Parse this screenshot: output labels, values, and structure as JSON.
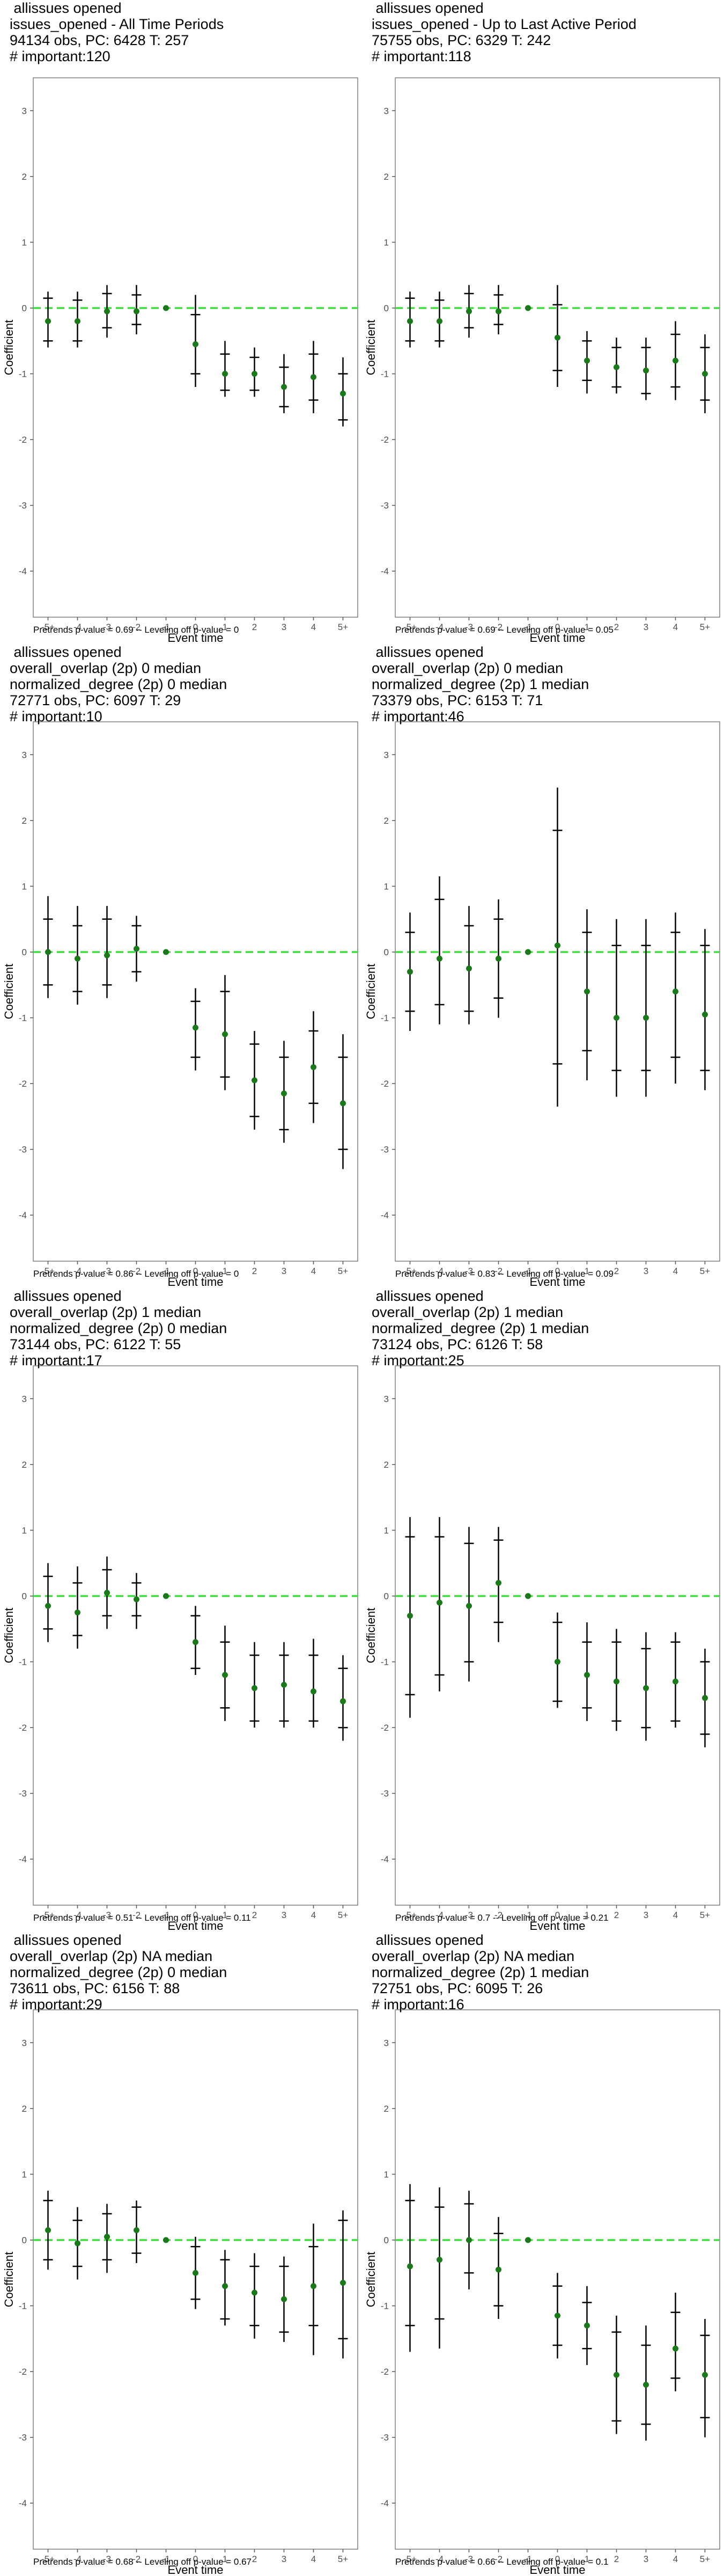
{
  "chart_data": [
    {
      "type": "scatter",
      "title_lines": [
        "allissues opened",
        "issues_opened - All Time Periods",
        "94134 obs, PC: 6428 T: 257",
        "# important:120"
      ],
      "xlabel": "Event time",
      "ylabel": "Coefficient",
      "ylim": [
        -4.7,
        3.5
      ],
      "yticks": [
        -4,
        -3,
        -2,
        -1,
        0,
        1,
        2,
        3
      ],
      "categories": [
        "-5+",
        "-4",
        "-3",
        "-2",
        "-1",
        "0",
        "1",
        "2",
        "3",
        "4",
        "5+"
      ],
      "reference_line": 0,
      "estimate": [
        -0.2,
        -0.2,
        -0.05,
        -0.05,
        0,
        -0.55,
        -1.0,
        -1.0,
        -1.2,
        -1.05,
        -1.3
      ],
      "ci_inner": [
        [
          -0.5,
          0.15
        ],
        [
          -0.5,
          0.12
        ],
        [
          -0.3,
          0.22
        ],
        [
          -0.25,
          0.2
        ],
        [
          0,
          0
        ],
        [
          -1.0,
          -0.1
        ],
        [
          -1.25,
          -0.7
        ],
        [
          -1.25,
          -0.75
        ],
        [
          -1.5,
          -0.9
        ],
        [
          -1.4,
          -0.7
        ],
        [
          -1.7,
          -1.0
        ]
      ],
      "ci_outer": [
        [
          -0.6,
          0.25
        ],
        [
          -0.6,
          0.25
        ],
        [
          -0.45,
          0.35
        ],
        [
          -0.4,
          0.35
        ],
        [
          0,
          0
        ],
        [
          -1.2,
          0.2
        ],
        [
          -1.35,
          -0.5
        ],
        [
          -1.35,
          -0.6
        ],
        [
          -1.6,
          -0.7
        ],
        [
          -1.6,
          -0.5
        ],
        [
          -1.8,
          -0.75
        ]
      ],
      "footer": "Pretrends p-value = 0.69 -- Leveling off p-value = 0"
    },
    {
      "type": "scatter",
      "title_lines": [
        "allissues opened",
        "issues_opened - Up to Last Active Period",
        "75755 obs, PC: 6329 T: 242",
        "# important:118"
      ],
      "xlabel": "Event time",
      "ylabel": "Coefficient",
      "ylim": [
        -4.7,
        3.5
      ],
      "yticks": [
        -4,
        -3,
        -2,
        -1,
        0,
        1,
        2,
        3
      ],
      "categories": [
        "-5+",
        "-4",
        "-3",
        "-2",
        "-1",
        "0",
        "1",
        "2",
        "3",
        "4",
        "5+"
      ],
      "reference_line": 0,
      "estimate": [
        -0.2,
        -0.2,
        -0.05,
        -0.05,
        0,
        -0.45,
        -0.8,
        -0.9,
        -0.95,
        -0.8,
        -1.0
      ],
      "ci_inner": [
        [
          -0.5,
          0.15
        ],
        [
          -0.5,
          0.12
        ],
        [
          -0.3,
          0.22
        ],
        [
          -0.25,
          0.2
        ],
        [
          0,
          0
        ],
        [
          -0.95,
          0.05
        ],
        [
          -1.1,
          -0.5
        ],
        [
          -1.2,
          -0.6
        ],
        [
          -1.3,
          -0.6
        ],
        [
          -1.2,
          -0.4
        ],
        [
          -1.4,
          -0.6
        ]
      ],
      "ci_outer": [
        [
          -0.6,
          0.25
        ],
        [
          -0.6,
          0.25
        ],
        [
          -0.45,
          0.35
        ],
        [
          -0.4,
          0.35
        ],
        [
          0,
          0
        ],
        [
          -1.2,
          0.35
        ],
        [
          -1.3,
          -0.35
        ],
        [
          -1.3,
          -0.45
        ],
        [
          -1.4,
          -0.45
        ],
        [
          -1.4,
          -0.2
        ],
        [
          -1.6,
          -0.4
        ]
      ],
      "footer": "Pretrends p-value = 0.69 -- Leveling off p-value = 0.05"
    },
    {
      "type": "scatter",
      "title_lines": [
        "allissues opened",
        "overall_overlap (2p) 0 median",
        "normalized_degree (2p) 0 median",
        "72771 obs, PC: 6097 T: 29",
        "# important:10"
      ],
      "xlabel": "Event time",
      "ylabel": "Coefficient",
      "ylim": [
        -4.7,
        3.5
      ],
      "yticks": [
        -4,
        -3,
        -2,
        -1,
        0,
        1,
        2,
        3
      ],
      "categories": [
        "-5+",
        "-4",
        "-3",
        "-2",
        "-1",
        "0",
        "1",
        "2",
        "3",
        "4",
        "5+"
      ],
      "reference_line": 0,
      "estimate": [
        0,
        -0.1,
        -0.05,
        0.05,
        0,
        -1.15,
        -1.25,
        -1.95,
        -2.15,
        -1.75,
        -2.3
      ],
      "ci_inner": [
        [
          -0.5,
          0.5
        ],
        [
          -0.6,
          0.4
        ],
        [
          -0.5,
          0.5
        ],
        [
          -0.3,
          0.4
        ],
        [
          0,
          0
        ],
        [
          -1.6,
          -0.75
        ],
        [
          -1.9,
          -0.6
        ],
        [
          -2.5,
          -1.4
        ],
        [
          -2.7,
          -1.6
        ],
        [
          -2.3,
          -1.2
        ],
        [
          -3.0,
          -1.6
        ]
      ],
      "ci_outer": [
        [
          -0.7,
          0.85
        ],
        [
          -0.8,
          0.7
        ],
        [
          -0.7,
          0.7
        ],
        [
          -0.45,
          0.55
        ],
        [
          0,
          0
        ],
        [
          -1.8,
          -0.55
        ],
        [
          -2.1,
          -0.35
        ],
        [
          -2.7,
          -1.2
        ],
        [
          -2.9,
          -1.35
        ],
        [
          -2.6,
          -0.9
        ],
        [
          -3.3,
          -1.25
        ]
      ],
      "footer": "Pretrends p-value = 0.86 -- Leveling off p-value = 0"
    },
    {
      "type": "scatter",
      "title_lines": [
        "allissues opened",
        "overall_overlap (2p) 0 median",
        "normalized_degree (2p) 1 median",
        "73379 obs, PC: 6153 T: 71",
        "# important:46"
      ],
      "xlabel": "Event time",
      "ylabel": "Coefficient",
      "ylim": [
        -4.7,
        3.5
      ],
      "yticks": [
        -4,
        -3,
        -2,
        -1,
        0,
        1,
        2,
        3
      ],
      "categories": [
        "-5+",
        "-4",
        "-3",
        "-2",
        "-1",
        "0",
        "1",
        "2",
        "3",
        "4",
        "5+"
      ],
      "reference_line": 0,
      "estimate": [
        -0.3,
        -0.1,
        -0.25,
        -0.1,
        0,
        0.1,
        -0.6,
        -1.0,
        -1.0,
        -0.6,
        -0.95
      ],
      "ci_inner": [
        [
          -0.9,
          0.3
        ],
        [
          -0.8,
          0.8
        ],
        [
          -0.9,
          0.4
        ],
        [
          -0.7,
          0.5
        ],
        [
          0,
          0
        ],
        [
          -1.7,
          1.85
        ],
        [
          -1.5,
          0.3
        ],
        [
          -1.8,
          0.1
        ],
        [
          -1.8,
          0.1
        ],
        [
          -1.6,
          0.3
        ],
        [
          -1.8,
          0.1
        ]
      ],
      "ci_outer": [
        [
          -1.2,
          0.6
        ],
        [
          -1.1,
          1.15
        ],
        [
          -1.1,
          0.7
        ],
        [
          -1.0,
          0.8
        ],
        [
          0,
          0
        ],
        [
          -2.35,
          2.5
        ],
        [
          -1.95,
          0.65
        ],
        [
          -2.2,
          0.5
        ],
        [
          -2.2,
          0.5
        ],
        [
          -2.0,
          0.6
        ],
        [
          -2.1,
          0.35
        ]
      ],
      "footer": "Pretrends p-value = 0.83 -- Leveling off p-value = 0.09"
    },
    {
      "type": "scatter",
      "title_lines": [
        "allissues opened",
        "overall_overlap (2p) 1 median",
        "normalized_degree (2p) 0 median",
        "73144 obs, PC: 6122 T: 55",
        "# important:17"
      ],
      "xlabel": "Event time",
      "ylabel": "Coefficient",
      "ylim": [
        -4.7,
        3.5
      ],
      "yticks": [
        -4,
        -3,
        -2,
        -1,
        0,
        1,
        2,
        3
      ],
      "categories": [
        "-5+",
        "-4",
        "-3",
        "-2",
        "-1",
        "0",
        "1",
        "2",
        "3",
        "4",
        "5+"
      ],
      "reference_line": 0,
      "estimate": [
        -0.15,
        -0.25,
        0.05,
        -0.05,
        0,
        -0.7,
        -1.2,
        -1.4,
        -1.35,
        -1.45,
        -1.6
      ],
      "ci_inner": [
        [
          -0.5,
          0.3
        ],
        [
          -0.6,
          0.2
        ],
        [
          -0.3,
          0.4
        ],
        [
          -0.3,
          0.2
        ],
        [
          0,
          0
        ],
        [
          -1.1,
          -0.3
        ],
        [
          -1.7,
          -0.7
        ],
        [
          -1.9,
          -0.9
        ],
        [
          -1.9,
          -0.9
        ],
        [
          -1.9,
          -0.9
        ],
        [
          -2.0,
          -1.1
        ]
      ],
      "ci_outer": [
        [
          -0.7,
          0.5
        ],
        [
          -0.8,
          0.45
        ],
        [
          -0.5,
          0.6
        ],
        [
          -0.5,
          0.35
        ],
        [
          0,
          0
        ],
        [
          -1.2,
          -0.15
        ],
        [
          -1.9,
          -0.45
        ],
        [
          -2.0,
          -0.7
        ],
        [
          -2.0,
          -0.7
        ],
        [
          -2.0,
          -0.65
        ],
        [
          -2.2,
          -0.9
        ]
      ],
      "footer": "Pretrends p-value = 0.51 -- Leveling off p-value = 0.11"
    },
    {
      "type": "scatter",
      "title_lines": [
        "allissues opened",
        "overall_overlap (2p) 1 median",
        "normalized_degree (2p) 1 median",
        "73124 obs, PC: 6126 T: 58",
        "# important:25"
      ],
      "xlabel": "Event time",
      "ylabel": "Coefficient",
      "ylim": [
        -4.7,
        3.5
      ],
      "yticks": [
        -4,
        -3,
        -2,
        -1,
        0,
        1,
        2,
        3
      ],
      "categories": [
        "-5+",
        "-4",
        "-3",
        "-2",
        "-1",
        "0",
        "1",
        "2",
        "3",
        "4",
        "5+"
      ],
      "reference_line": 0,
      "estimate": [
        -0.3,
        -0.1,
        -0.15,
        0.2,
        0,
        -1.0,
        -1.2,
        -1.3,
        -1.4,
        -1.3,
        -1.55
      ],
      "ci_inner": [
        [
          -1.5,
          0.9
        ],
        [
          -1.2,
          0.9
        ],
        [
          -1.0,
          0.8
        ],
        [
          -0.4,
          0.85
        ],
        [
          0,
          0
        ],
        [
          -1.6,
          -0.4
        ],
        [
          -1.7,
          -0.7
        ],
        [
          -1.9,
          -0.7
        ],
        [
          -2.0,
          -0.8
        ],
        [
          -1.9,
          -0.7
        ],
        [
          -2.1,
          -1.0
        ]
      ],
      "ci_outer": [
        [
          -1.85,
          1.2
        ],
        [
          -1.45,
          1.2
        ],
        [
          -1.3,
          1.05
        ],
        [
          -0.7,
          1.05
        ],
        [
          0,
          0
        ],
        [
          -1.7,
          -0.25
        ],
        [
          -1.9,
          -0.4
        ],
        [
          -2.05,
          -0.5
        ],
        [
          -2.2,
          -0.55
        ],
        [
          -2.0,
          -0.55
        ],
        [
          -2.3,
          -0.8
        ]
      ],
      "footer": "Pretrends p-value = 0.7 -- Leveling off p-value = 0.21"
    },
    {
      "type": "scatter",
      "title_lines": [
        "allissues opened",
        "overall_overlap (2p) NA median",
        "normalized_degree (2p) 0 median",
        "73611 obs, PC: 6156 T: 88",
        "# important:29"
      ],
      "xlabel": "Event time",
      "ylabel": "Coefficient",
      "ylim": [
        -4.7,
        3.5
      ],
      "yticks": [
        -4,
        -3,
        -2,
        -1,
        0,
        1,
        2,
        3
      ],
      "categories": [
        "-5+",
        "-4",
        "-3",
        "-2",
        "-1",
        "0",
        "1",
        "2",
        "3",
        "4",
        "5+"
      ],
      "reference_line": 0,
      "estimate": [
        0.15,
        -0.05,
        0.05,
        0.15,
        0,
        -0.5,
        -0.7,
        -0.8,
        -0.9,
        -0.7,
        -0.65
      ],
      "ci_inner": [
        [
          -0.3,
          0.6
        ],
        [
          -0.4,
          0.3
        ],
        [
          -0.3,
          0.4
        ],
        [
          -0.2,
          0.5
        ],
        [
          0,
          0
        ],
        [
          -0.9,
          -0.1
        ],
        [
          -1.2,
          -0.3
        ],
        [
          -1.3,
          -0.4
        ],
        [
          -1.4,
          -0.4
        ],
        [
          -1.3,
          -0.1
        ],
        [
          -1.5,
          0.3
        ]
      ],
      "ci_outer": [
        [
          -0.45,
          0.75
        ],
        [
          -0.6,
          0.5
        ],
        [
          -0.5,
          0.55
        ],
        [
          -0.35,
          0.6
        ],
        [
          0,
          0
        ],
        [
          -1.05,
          0.05
        ],
        [
          -1.3,
          -0.15
        ],
        [
          -1.5,
          -0.2
        ],
        [
          -1.55,
          -0.25
        ],
        [
          -1.75,
          0.25
        ],
        [
          -1.8,
          0.45
        ]
      ],
      "footer": "Pretrends p-value = 0.68 -- Leveling off p-value = 0.67"
    },
    {
      "type": "scatter",
      "title_lines": [
        "allissues opened",
        "overall_overlap (2p) NA median",
        "normalized_degree (2p) 1 median",
        "72751 obs, PC: 6095 T: 26",
        "# important:16"
      ],
      "xlabel": "Event time",
      "ylabel": "Coefficient",
      "ylim": [
        -4.7,
        3.5
      ],
      "yticks": [
        -4,
        -3,
        -2,
        -1,
        0,
        1,
        2,
        3
      ],
      "categories": [
        "-5+",
        "-4",
        "-3",
        "-2",
        "-1",
        "0",
        "1",
        "2",
        "3",
        "4",
        "5+"
      ],
      "reference_line": 0,
      "estimate": [
        -0.4,
        -0.3,
        0,
        -0.45,
        0,
        -1.15,
        -1.3,
        -2.05,
        -2.2,
        -1.65,
        -2.05
      ],
      "ci_inner": [
        [
          -1.3,
          0.6
        ],
        [
          -1.2,
          0.5
        ],
        [
          -0.5,
          0.55
        ],
        [
          -1.0,
          0.1
        ],
        [
          0,
          0
        ],
        [
          -1.6,
          -0.7
        ],
        [
          -1.65,
          -0.95
        ],
        [
          -2.75,
          -1.4
        ],
        [
          -2.8,
          -1.6
        ],
        [
          -2.1,
          -1.1
        ],
        [
          -2.7,
          -1.45
        ]
      ],
      "ci_outer": [
        [
          -1.7,
          0.85
        ],
        [
          -1.65,
          0.8
        ],
        [
          -0.75,
          0.75
        ],
        [
          -1.2,
          0.35
        ],
        [
          0,
          0
        ],
        [
          -1.8,
          -0.5
        ],
        [
          -1.9,
          -0.7
        ],
        [
          -2.95,
          -1.15
        ],
        [
          -3.05,
          -1.3
        ],
        [
          -2.3,
          -0.8
        ],
        [
          -3.0,
          -1.2
        ]
      ],
      "footer": "Pretrends p-value = 0.66 -- Leveling off p-value = 0.1"
    }
  ],
  "colors": {
    "estimate_point": "#1a7a1a",
    "reference_line": "#3cdd3c",
    "interval": "#000000",
    "frame": "#808080",
    "tick": "#555555"
  }
}
